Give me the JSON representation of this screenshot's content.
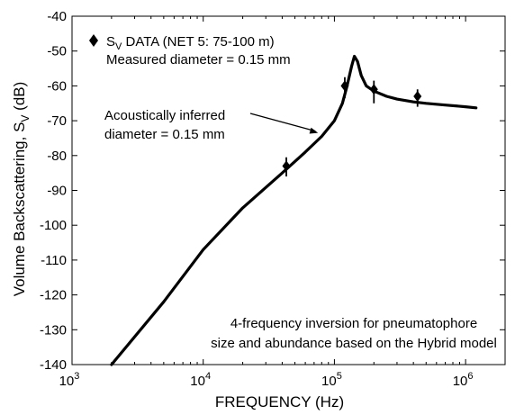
{
  "chart_data": {
    "type": "line",
    "xscale": "log",
    "xlim": [
      1000,
      2000000
    ],
    "ylim": [
      -140,
      -40
    ],
    "xlabel": "FREQUENCY (Hz)",
    "ylabel": "Volume Backscattering,  S",
    "ylabel_sub": "V",
    "ylabel_suffix": " (dB)",
    "x_ticks": [
      {
        "value": 1000,
        "base": "10",
        "exp": "3"
      },
      {
        "value": 10000,
        "base": "10",
        "exp": "4"
      },
      {
        "value": 100000,
        "base": "10",
        "exp": "5"
      },
      {
        "value": 1000000,
        "base": "10",
        "exp": "6"
      }
    ],
    "y_ticks": [
      -40,
      -50,
      -60,
      -70,
      -80,
      -90,
      -100,
      -110,
      -120,
      -130,
      -140
    ],
    "grid": false,
    "series": [
      {
        "kind": "model-curve",
        "x": [
          2000,
          5000,
          10000,
          20000,
          40000,
          60000,
          80000,
          100000,
          115000,
          125000,
          135000,
          142000,
          150000,
          160000,
          175000,
          200000,
          250000,
          300000,
          400000,
          500000,
          700000,
          1000000,
          1200000
        ],
        "y": [
          -140,
          -122,
          -107,
          -95,
          -85,
          -79,
          -74.5,
          -70,
          -65,
          -60,
          -54.5,
          -51.5,
          -53,
          -57,
          -60,
          -61.5,
          -63,
          -63.8,
          -64.6,
          -65,
          -65.5,
          -66,
          -66.3
        ],
        "color": "#000000"
      },
      {
        "name": "S",
        "name_sub": "V",
        "name_suffix": " DATA (NET 5: 75-100 m)",
        "kind": "data-points",
        "marker": "diamond",
        "x": [
          43000,
          120000,
          200000,
          430000
        ],
        "y": [
          -83,
          -60,
          -61,
          -63
        ],
        "err_low": [
          3,
          3.5,
          4,
          3
        ],
        "err_high": [
          2.5,
          2.5,
          2.5,
          2
        ],
        "color": "#000000"
      }
    ],
    "annotations": {
      "legend_line2": "Measured diameter = 0.15 mm",
      "arrow_label_line1": "Acoustically inferred",
      "arrow_label_line2": "diameter = 0.15 mm",
      "note_line1": "4-frequency inversion for pneumatophore",
      "note_line2": "size and abundance based on the Hybrid model"
    },
    "arrow_target": {
      "x": 75000,
      "y": -73.5
    }
  }
}
